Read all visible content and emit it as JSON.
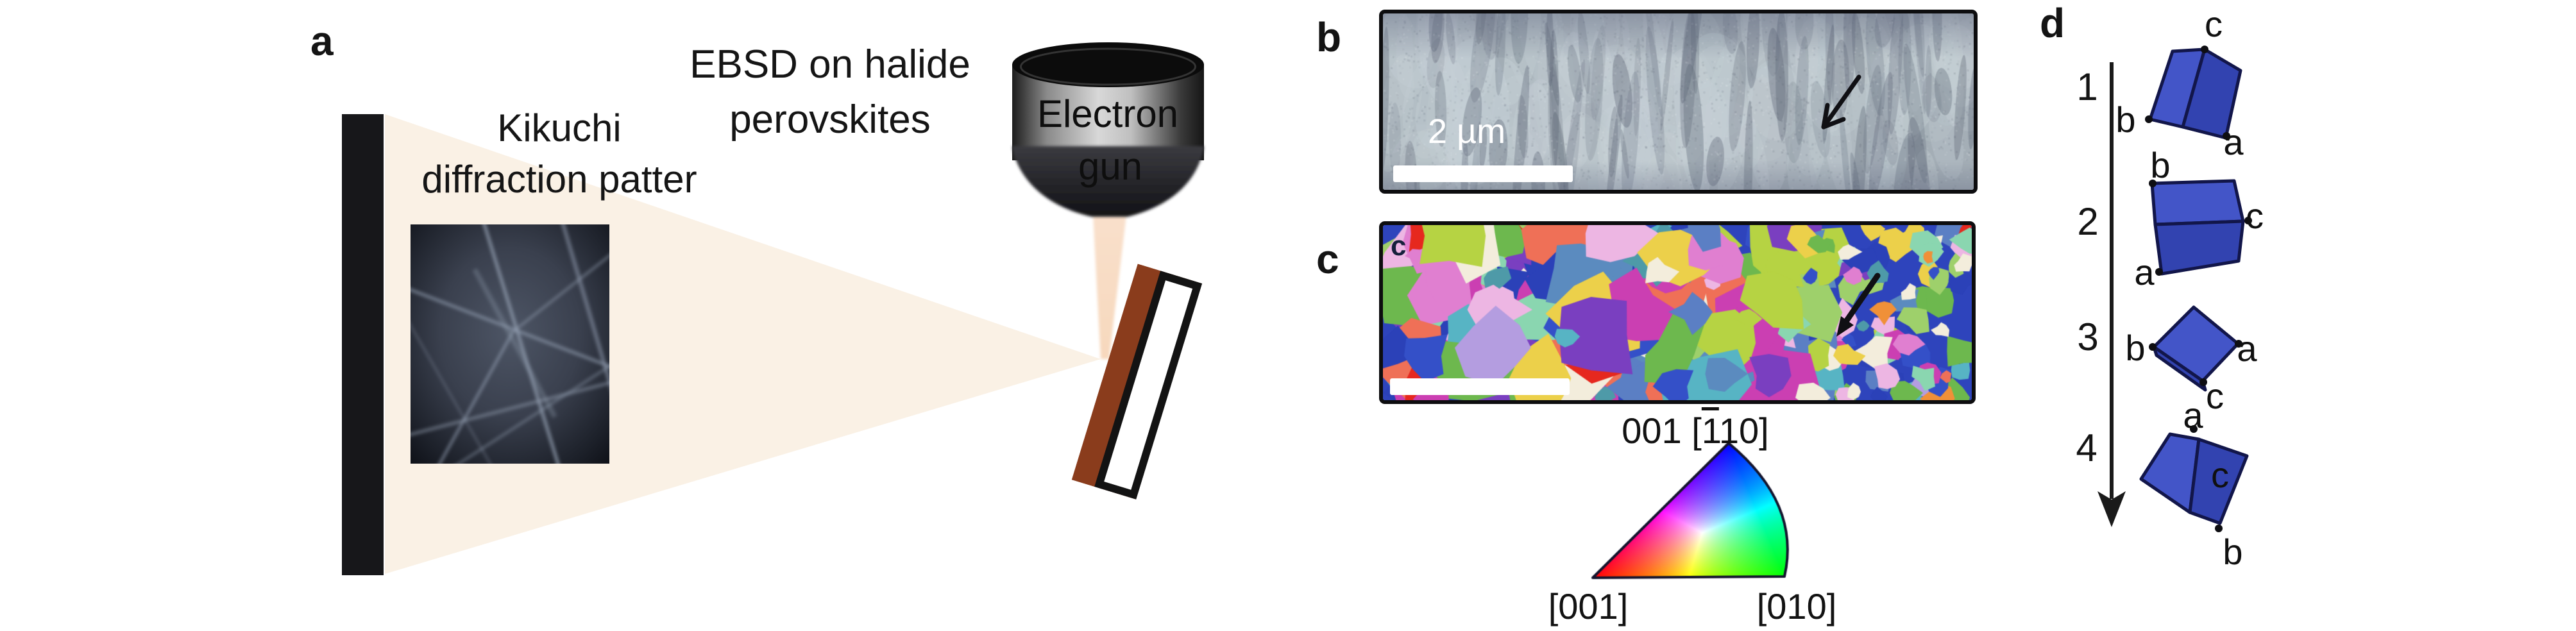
{
  "panel_a": {
    "label": "a",
    "detector_caption": [
      "Kikuchi",
      "diffraction patter"
    ],
    "title": [
      "EBSD on halide",
      "perovskites"
    ],
    "gun_label": [
      "Electron",
      "gun"
    ],
    "colors": {
      "detector_screen": "#17171a",
      "signal_cone": "#faf1e5",
      "beam": "#f7d8bd",
      "sample_layer_brown": "#8a3c1c",
      "sample_substrate": "#ffffff",
      "sample_outline": "#131313",
      "gun_dark": "#141414",
      "gun_light": "#d8d8d8"
    }
  },
  "panel_b": {
    "label": "b",
    "scalebar_text": "2 µm",
    "colors": {
      "base": "#a4aeb6",
      "light": "#c6d0d6",
      "dark": "#5f6878",
      "border": "#0d0d0f",
      "scalebar": "#ffffff"
    }
  },
  "panel_c": {
    "label": "c",
    "watermark": "c",
    "colors": {
      "border": "#0d0d0f",
      "scalebar": "#ffffff",
      "base": "#2e44bc"
    },
    "ipf": {
      "top_label_prefix": "001 [",
      "top_label_overbar": "1",
      "top_label_suffix": "10]",
      "bottom_left_label": "[001]",
      "bottom_right_label": "[010]",
      "corner_colors": {
        "top": "#2a3fd8",
        "bottom_left": "#e02a1a",
        "bottom_right": "#3fc31f"
      }
    },
    "palette": [
      "#2b41b8",
      "#3450c8",
      "#5b7fc4",
      "#4e9aa8",
      "#57b4c4",
      "#5b8bbf",
      "#6db84e",
      "#9ed06b",
      "#b6d343",
      "#cb3fb2",
      "#e07fd0",
      "#edb6e3",
      "#ef7057",
      "#e6281e",
      "#f09038",
      "#f3eddc",
      "#b49de0",
      "#7a3fc0",
      "#ecd04a",
      "#8ad6b0"
    ]
  },
  "panel_d": {
    "label": "d",
    "steps": [
      "1",
      "2",
      "3",
      "4"
    ],
    "axis_labels": {
      "a": "a",
      "b": "b",
      "c": "c"
    },
    "colors": {
      "face_light": "#4355c8",
      "face_dark": "#3243b0",
      "edge": "#12164a",
      "arrow": "#1a1a1a"
    }
  }
}
